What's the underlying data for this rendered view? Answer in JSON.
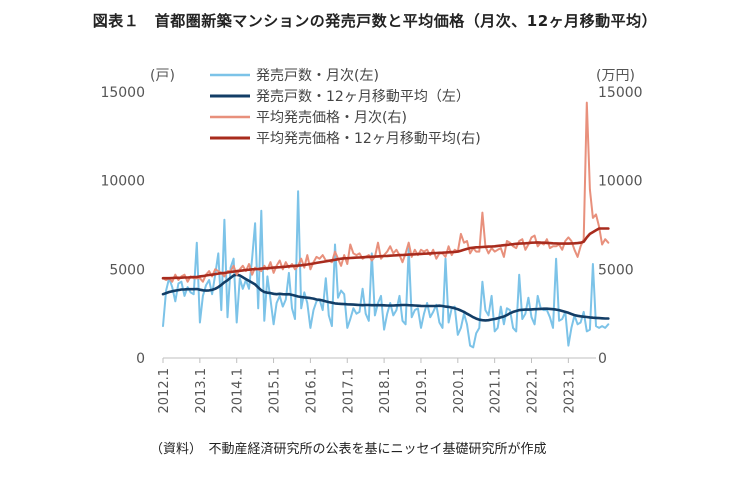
{
  "chart_data": {
    "type": "line",
    "title": "図表１　首都圏新築マンションの発売戸数と平均価格（月次、12ヶ月移動平均）",
    "source": "（資料）　不動産経済研究所の公表を基にニッセイ基礎研究所が作成",
    "left_unit": "(戸)",
    "right_unit": "(万円)",
    "left_axis": {
      "min": 0,
      "max": 15000,
      "ticks": [
        0,
        5000,
        10000,
        15000
      ]
    },
    "right_axis": {
      "min": 0,
      "max": 15000,
      "ticks": [
        0,
        5000,
        10000,
        15000
      ]
    },
    "x_tick_labels": [
      "2012.1",
      "2013.1",
      "2014.1",
      "2015.1",
      "2016.1",
      "2017.1",
      "2018.1",
      "2019.1",
      "2020.1",
      "2021.1",
      "2022.1",
      "2023.1"
    ],
    "x_start_year": 2012,
    "n_months": 142,
    "legend_position": "top-left",
    "series": [
      {
        "name": "発売戸数・月次(左)",
        "axis": "left",
        "color": "#7cc3e8",
        "width": 2,
        "values": [
          1800,
          3800,
          4500,
          4000,
          3200,
          4200,
          4300,
          3500,
          4000,
          3700,
          3600,
          6500,
          2000,
          3500,
          4100,
          4400,
          3600,
          4700,
          5900,
          2700,
          7800,
          2300,
          5100,
          5600,
          2000,
          4500,
          3900,
          4400,
          3900,
          5600,
          7600,
          2800,
          8300,
          2100,
          4600,
          3300,
          1900,
          3100,
          3500,
          2900,
          3300,
          4800,
          2800,
          2200,
          9400,
          2800,
          3700,
          3100,
          1700,
          2700,
          3200,
          3300,
          2700,
          4500,
          2400,
          1800,
          6400,
          3400,
          3800,
          3600,
          1700,
          2200,
          2800,
          2500,
          2600,
          3900,
          2500,
          2100,
          5900,
          2400,
          3100,
          3500,
          1600,
          2500,
          3100,
          2400,
          2700,
          3500,
          2100,
          1900,
          6200,
          2300,
          2700,
          2800,
          1700,
          2500,
          3100,
          2300,
          2600,
          3000,
          2000,
          1700,
          5600,
          2000,
          2800,
          2900,
          1300,
          1700,
          2500,
          1900,
          700,
          600,
          1400,
          1700,
          4300,
          2700,
          2400,
          3500,
          1500,
          1700,
          2900,
          1900,
          2800,
          2700,
          1700,
          1500,
          4700,
          2200,
          2500,
          3400,
          2300,
          1900,
          3500,
          2800,
          2700,
          2700,
          2300,
          1700,
          5600,
          2100,
          2200,
          2600,
          700,
          1700,
          2400,
          1900,
          2000,
          2600,
          1500,
          1600,
          5300,
          1800,
          1700,
          1800,
          1700,
          1900
        ]
      },
      {
        "name": "発売戸数・12ヶ月移動平均（左）",
        "axis": "left",
        "color": "#123d66",
        "width": 2.6,
        "values": [
          3600,
          3660,
          3720,
          3760,
          3800,
          3830,
          3860,
          3870,
          3880,
          3880,
          3880,
          3890,
          3850,
          3820,
          3800,
          3810,
          3840,
          3900,
          4000,
          4120,
          4270,
          4380,
          4520,
          4650,
          4700,
          4650,
          4550,
          4450,
          4350,
          4250,
          4150,
          3980,
          3820,
          3720,
          3680,
          3660,
          3620,
          3600,
          3620,
          3600,
          3590,
          3600,
          3560,
          3520,
          3470,
          3440,
          3420,
          3400,
          3380,
          3350,
          3300,
          3280,
          3240,
          3190,
          3150,
          3120,
          3080,
          3060,
          3050,
          3040,
          3030,
          3020,
          3010,
          3000,
          2990,
          2980,
          2990,
          2990,
          2980,
          2980,
          2980,
          2980,
          2970,
          2960,
          2960,
          2960,
          2970,
          2980,
          2990,
          2990,
          2980,
          2970,
          2960,
          2950,
          2940,
          2930,
          2930,
          2930,
          2930,
          2940,
          2950,
          2930,
          2900,
          2880,
          2850,
          2800,
          2750,
          2680,
          2600,
          2500,
          2400,
          2300,
          2220,
          2160,
          2130,
          2120,
          2130,
          2170,
          2200,
          2240,
          2290,
          2340,
          2420,
          2520,
          2600,
          2650,
          2700,
          2720,
          2730,
          2730,
          2740,
          2750,
          2760,
          2770,
          2780,
          2780,
          2770,
          2750,
          2730,
          2700,
          2650,
          2600,
          2550,
          2480,
          2420,
          2380,
          2350,
          2330,
          2310,
          2290,
          2270,
          2260,
          2250,
          2240,
          2230,
          2230
        ]
      },
      {
        "name": "平均発売価格・月次(右)",
        "axis": "right",
        "color": "#e8907c",
        "width": 2,
        "values": [
          4500,
          4400,
          4500,
          4300,
          4700,
          4400,
          4600,
          4700,
          4300,
          4600,
          4500,
          4500,
          4500,
          4300,
          4700,
          4900,
          4600,
          5000,
          4900,
          4800,
          4600,
          4900,
          4900,
          5200,
          4700,
          5000,
          5200,
          4900,
          5300,
          4700,
          5100,
          5000,
          4900,
          5200,
          5000,
          5400,
          4800,
          5200,
          5500,
          5000,
          5400,
          5100,
          5300,
          5000,
          5200,
          5600,
          5100,
          5800,
          5000,
          5400,
          5700,
          5600,
          5800,
          5500,
          5500,
          5400,
          6000,
          5600,
          5200,
          5800,
          5300,
          6400,
          5900,
          5800,
          5900,
          5600,
          5700,
          5800,
          5500,
          5700,
          6500,
          5600,
          5800,
          6000,
          6300,
          5900,
          6100,
          5800,
          5400,
          5900,
          6500,
          5700,
          6100,
          5800,
          6100,
          6000,
          6100,
          5800,
          6100,
          5600,
          5900,
          5900,
          5700,
          6300,
          5800,
          6100,
          6000,
          7000,
          6500,
          6600,
          5900,
          6200,
          6000,
          6000,
          8200,
          6300,
          5900,
          6200,
          6000,
          6100,
          6200,
          5700,
          6600,
          6500,
          6300,
          6200,
          6600,
          6700,
          6100,
          6400,
          6800,
          6900,
          6300,
          6500,
          6400,
          6700,
          6200,
          6300,
          6300,
          6400,
          6100,
          6600,
          6800,
          6600,
          6100,
          5700,
          6300,
          6700,
          14400,
          9500,
          7900,
          8100,
          7400,
          6400,
          6700,
          6500
        ]
      },
      {
        "name": "平均発売価格・12ヶ月移動平均(右)",
        "axis": "right",
        "color": "#a82b1d",
        "width": 2.6,
        "values": [
          4500,
          4500,
          4500,
          4510,
          4520,
          4520,
          4530,
          4540,
          4540,
          4550,
          4560,
          4570,
          4600,
          4620,
          4650,
          4680,
          4700,
          4730,
          4760,
          4780,
          4800,
          4820,
          4850,
          4870,
          4900,
          4920,
          4940,
          4960,
          4980,
          5000,
          5010,
          5020,
          5040,
          5050,
          5060,
          5080,
          5100,
          5110,
          5120,
          5140,
          5150,
          5170,
          5180,
          5200,
          5210,
          5230,
          5250,
          5270,
          5300,
          5330,
          5360,
          5390,
          5420,
          5450,
          5480,
          5510,
          5540,
          5570,
          5600,
          5620,
          5630,
          5640,
          5650,
          5660,
          5670,
          5680,
          5690,
          5700,
          5710,
          5720,
          5730,
          5740,
          5750,
          5760,
          5770,
          5780,
          5790,
          5800,
          5810,
          5820,
          5830,
          5840,
          5850,
          5860,
          5870,
          5880,
          5890,
          5900,
          5910,
          5920,
          5930,
          5940,
          5950,
          5960,
          5970,
          5980,
          6000,
          6050,
          6100,
          6150,
          6200,
          6220,
          6240,
          6250,
          6260,
          6270,
          6280,
          6290,
          6300,
          6320,
          6340,
          6360,
          6380,
          6400,
          6420,
          6440,
          6450,
          6460,
          6470,
          6480,
          6500,
          6510,
          6520,
          6510,
          6500,
          6490,
          6480,
          6470,
          6460,
          6450,
          6450,
          6450,
          6450,
          6460,
          6470,
          6480,
          6500,
          6550,
          6800,
          7000,
          7100,
          7200,
          7300,
          7300,
          7300,
          7300
        ]
      }
    ]
  }
}
